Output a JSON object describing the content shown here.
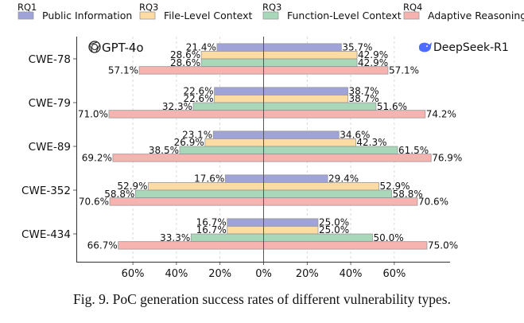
{
  "caption": "Fig. 9.  PoC generation success rates of different vulnerability types.",
  "chart_data": {
    "type": "bar",
    "orientation": "horizontal-diverging",
    "title": "",
    "xlabel": "",
    "ylabel": "",
    "left_model": "GPT-4o",
    "right_model": "DeepSeek-R1",
    "left_model_icon": "openai-logo-icon",
    "right_model_icon": "deepseek-whale-icon",
    "categories": [
      "CWE-78",
      "CWE-79",
      "CWE-89",
      "CWE-352",
      "CWE-434"
    ],
    "xlim": [
      -80,
      80
    ],
    "xticks": [
      -60,
      -40,
      -20,
      0,
      20,
      40,
      60
    ],
    "xtick_labels": [
      "60%",
      "40%",
      "20%",
      "0%",
      "20%",
      "40%",
      "60%"
    ],
    "grid": "vertical dashed",
    "legend_position": "top",
    "series": [
      {
        "name": "Public Information",
        "tag": "RQ1",
        "color": "#9fa3d8",
        "gpt4o": [
          21.4,
          22.6,
          23.1,
          17.6,
          16.7
        ],
        "deepseek_r1": [
          35.7,
          38.7,
          34.6,
          29.4,
          25.0
        ],
        "gpt4o_labels": [
          "21.4%",
          "22.6%",
          "23.1%",
          "17.6%",
          "16.7%"
        ],
        "deepseek_r1_labels": [
          "35.7%",
          "38.7%",
          "34.6%",
          "29.4%",
          "25.0%"
        ]
      },
      {
        "name": "File-Level Context",
        "tag": "RQ3",
        "color": "#fddca3",
        "gpt4o": [
          28.6,
          22.6,
          26.9,
          52.9,
          16.7
        ],
        "deepseek_r1": [
          42.9,
          38.7,
          42.3,
          52.9,
          25.0
        ],
        "gpt4o_labels": [
          "28.6%",
          "22.6%",
          "26.9%",
          "52.9%",
          "16.7%"
        ],
        "deepseek_r1_labels": [
          "42.9%",
          "38.7%",
          "42.3%",
          "52.9%",
          "25.0%"
        ]
      },
      {
        "name": "Function-Level Context",
        "tag": "RQ3",
        "color": "#a8d8b9",
        "gpt4o": [
          28.6,
          32.3,
          38.5,
          58.8,
          33.3
        ],
        "deepseek_r1": [
          42.9,
          51.6,
          61.5,
          58.8,
          50.0
        ],
        "gpt4o_labels": [
          "28.6%",
          "32.3%",
          "38.5%",
          "58.8%",
          "33.3%"
        ],
        "deepseek_r1_labels": [
          "42.9%",
          "51.6%",
          "61.5%",
          "58.8%",
          "50.0%"
        ]
      },
      {
        "name": "Adaptive Reasoning",
        "tag": "RQ4",
        "color": "#f6b3b0",
        "gpt4o": [
          57.1,
          71.0,
          69.2,
          70.6,
          66.7
        ],
        "deepseek_r1": [
          57.1,
          74.2,
          76.9,
          70.6,
          75.0
        ],
        "gpt4o_labels": [
          "57.1%",
          "71.0%",
          "69.2%",
          "70.6%",
          "66.7%"
        ],
        "deepseek_r1_labels": [
          "57.1%",
          "74.2%",
          "76.9%",
          "70.6%",
          "75.0%"
        ]
      }
    ]
  }
}
